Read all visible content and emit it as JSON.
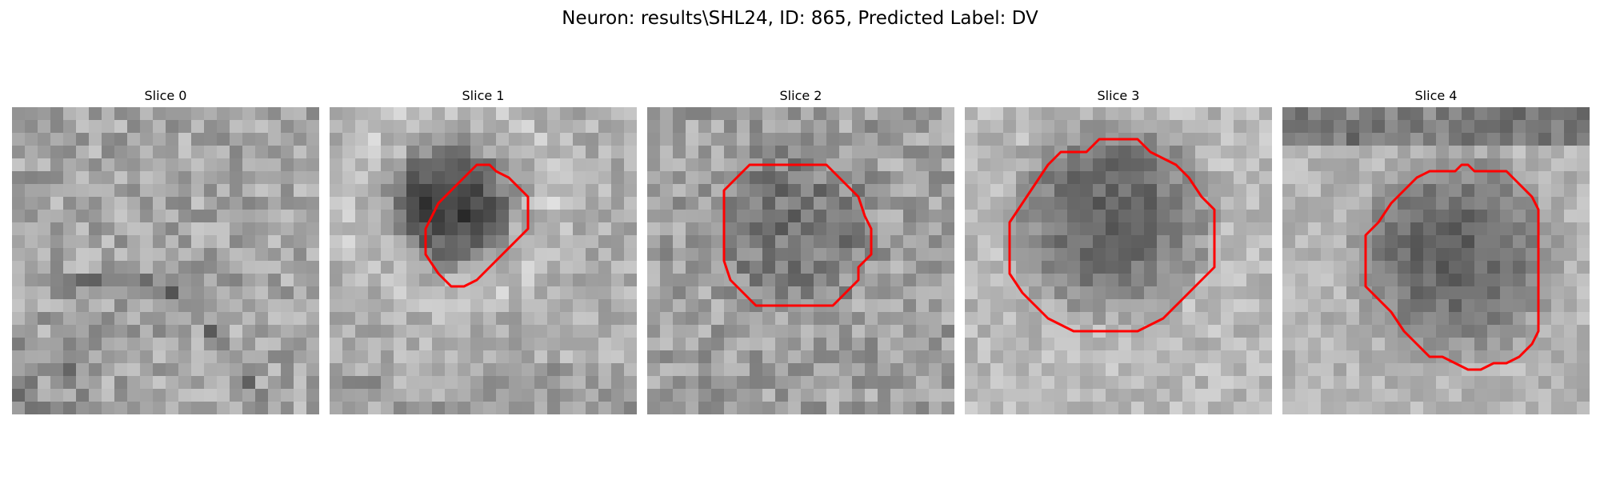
{
  "figure": {
    "title": "Neuron: results\\SHL24, ID: 865, Predicted Label: DV"
  },
  "panels": [
    {
      "title": "Slice 0",
      "has_contour": false
    },
    {
      "title": "Slice 1",
      "has_contour": true
    },
    {
      "title": "Slice 2",
      "has_contour": true
    },
    {
      "title": "Slice 3",
      "has_contour": true
    },
    {
      "title": "Slice 4",
      "has_contour": true
    }
  ],
  "colors": {
    "contour": "#ff0000",
    "background": "#ffffff"
  }
}
